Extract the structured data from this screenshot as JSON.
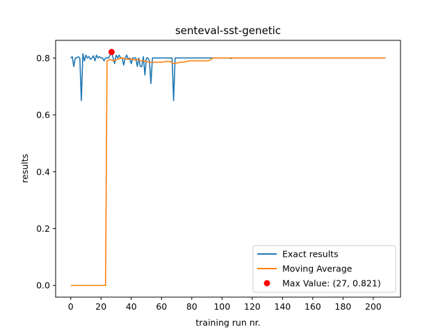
{
  "chart_data": {
    "type": "line",
    "title": "senteval-sst-genetic",
    "xlabel": "training run nr.",
    "ylabel": "results",
    "xlim": [
      -10,
      218
    ],
    "ylim": [
      -0.041,
      0.862
    ],
    "xticks": [
      0,
      20,
      40,
      60,
      80,
      100,
      120,
      140,
      160,
      180,
      200
    ],
    "yticks": [
      0.0,
      0.2,
      0.4,
      0.6,
      0.8
    ],
    "xtick_labels": [
      "0",
      "20",
      "40",
      "60",
      "80",
      "100",
      "120",
      "140",
      "160",
      "180",
      "200"
    ],
    "ytick_labels": [
      "0.0",
      "0.2",
      "0.4",
      "0.6",
      "0.8"
    ],
    "grid": false,
    "legend_position": "lower-right",
    "series": [
      {
        "name": "Exact results",
        "color": "#1f77b4",
        "x": [
          0,
          1,
          2,
          3,
          4,
          5,
          6,
          7,
          8,
          9,
          10,
          11,
          12,
          13,
          14,
          15,
          16,
          17,
          18,
          19,
          20,
          21,
          22,
          23,
          24,
          25,
          26,
          27,
          28,
          29,
          30,
          31,
          32,
          33,
          34,
          35,
          36,
          37,
          38,
          39,
          40,
          41,
          42,
          43,
          44,
          45,
          46,
          47,
          48,
          49,
          50,
          51,
          52,
          53,
          54,
          55,
          56,
          57,
          58,
          59,
          60,
          61,
          62,
          63,
          64,
          65,
          66,
          67,
          68,
          69,
          70,
          71,
          72,
          73,
          74,
          75,
          76,
          77,
          78,
          79,
          80,
          85,
          90,
          95,
          100,
          105,
          106,
          107,
          108,
          110,
          115,
          120,
          125,
          130,
          135,
          140,
          145,
          150,
          155,
          160,
          165,
          170,
          175,
          180,
          185,
          190,
          195,
          200,
          205,
          208
        ],
        "y": [
          0.8,
          0.805,
          0.77,
          0.8,
          0.8,
          0.805,
          0.8,
          0.65,
          0.815,
          0.79,
          0.81,
          0.8,
          0.805,
          0.795,
          0.8,
          0.808,
          0.79,
          0.81,
          0.8,
          0.805,
          0.8,
          0.8,
          0.79,
          0.8,
          0.8,
          0.8,
          0.81,
          0.821,
          0.8,
          0.78,
          0.81,
          0.8,
          0.81,
          0.8,
          0.8,
          0.775,
          0.8,
          0.81,
          0.795,
          0.8,
          0.78,
          0.8,
          0.8,
          0.8,
          0.77,
          0.8,
          0.77,
          0.77,
          0.805,
          0.74,
          0.8,
          0.8,
          0.79,
          0.71,
          0.8,
          0.8,
          0.8,
          0.8,
          0.8,
          0.8,
          0.8,
          0.8,
          0.8,
          0.8,
          0.8,
          0.8,
          0.8,
          0.8,
          0.65,
          0.8,
          0.8,
          0.8,
          0.8,
          0.8,
          0.8,
          0.8,
          0.8,
          0.8,
          0.8,
          0.8,
          0.8,
          0.8,
          0.8,
          0.8,
          0.8,
          0.8,
          0.798,
          0.8,
          0.8,
          0.8,
          0.8,
          0.8,
          0.8,
          0.8,
          0.8,
          0.8,
          0.8,
          0.8,
          0.8,
          0.8,
          0.8,
          0.8,
          0.8,
          0.8,
          0.8,
          0.8,
          0.8,
          0.8,
          0.8,
          0.8
        ]
      },
      {
        "name": "Moving Average",
        "color": "#ff7f0e",
        "x": [
          0,
          5,
          10,
          15,
          20,
          22,
          23,
          24,
          26,
          28,
          30,
          32,
          34,
          36,
          38,
          40,
          42,
          44,
          46,
          48,
          50,
          52,
          54,
          56,
          58,
          60,
          62,
          64,
          66,
          68,
          70,
          72,
          74,
          76,
          78,
          80,
          85,
          90,
          92,
          94,
          100,
          110,
          120,
          140,
          160,
          180,
          200,
          208
        ],
        "y": [
          0.0,
          0.0,
          0.0,
          0.0,
          0.0,
          0.0,
          0.0,
          0.79,
          0.795,
          0.79,
          0.793,
          0.798,
          0.8,
          0.797,
          0.795,
          0.797,
          0.793,
          0.795,
          0.79,
          0.79,
          0.788,
          0.785,
          0.785,
          0.785,
          0.785,
          0.785,
          0.787,
          0.788,
          0.787,
          0.78,
          0.782,
          0.785,
          0.785,
          0.787,
          0.79,
          0.79,
          0.79,
          0.79,
          0.792,
          0.8,
          0.8,
          0.8,
          0.8,
          0.8,
          0.8,
          0.8,
          0.8,
          0.8
        ]
      }
    ],
    "max_marker": {
      "name": "Max Value: (27, 0.821)",
      "x": 27,
      "y": 0.821,
      "color": "#ff0000"
    }
  }
}
